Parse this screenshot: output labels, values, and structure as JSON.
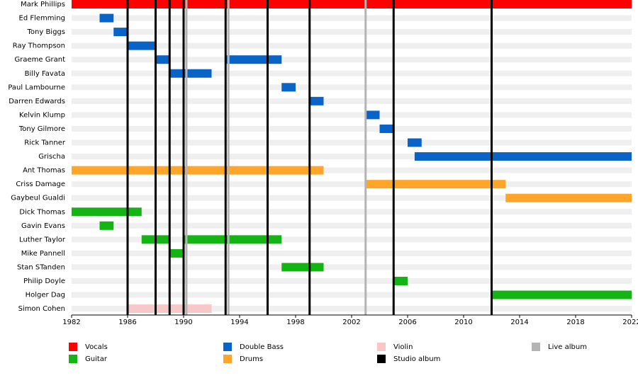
{
  "chart_data": {
    "type": "timeline",
    "xlim": [
      1982,
      2022
    ],
    "xticks": [
      1982,
      1986,
      1990,
      1994,
      1998,
      2002,
      2006,
      2010,
      2014,
      2018,
      2022
    ],
    "roles": [
      {
        "name": "Vocals",
        "color": "#ff0000"
      },
      {
        "name": "Guitar",
        "color": "#14b414"
      },
      {
        "name": "Double Bass",
        "color": "#0a64c8"
      },
      {
        "name": "Drums",
        "color": "#ffa62a"
      },
      {
        "name": "Violin",
        "color": "#f8c8c8"
      }
    ],
    "events": [
      {
        "name": "Studio album",
        "color": "#000000",
        "x": [
          1986,
          1988,
          1989,
          1990,
          1993,
          1996,
          1999,
          2005,
          2012
        ]
      },
      {
        "name": "Live album",
        "color": "#b4b4b4",
        "x": [
          1990.2,
          1993.2,
          2003
        ]
      }
    ],
    "members": [
      {
        "name": "Mark Phillips",
        "periods": [
          {
            "role": "Vocals",
            "start": 1982,
            "end": 2022
          }
        ]
      },
      {
        "name": "Ed Flemming",
        "periods": [
          {
            "role": "Double Bass",
            "start": 1984,
            "end": 1985
          }
        ]
      },
      {
        "name": "Tony Biggs",
        "periods": [
          {
            "role": "Double Bass",
            "start": 1985,
            "end": 1986
          }
        ]
      },
      {
        "name": "Ray Thompson",
        "periods": [
          {
            "role": "Double Bass",
            "start": 1986,
            "end": 1988
          }
        ]
      },
      {
        "name": "Graeme Grant",
        "periods": [
          {
            "role": "Double Bass",
            "start": 1988,
            "end": 1989
          },
          {
            "role": "Double Bass",
            "start": 1993,
            "end": 1997
          }
        ]
      },
      {
        "name": "Billy Favata",
        "periods": [
          {
            "role": "Double Bass",
            "start": 1989,
            "end": 1992
          }
        ]
      },
      {
        "name": "Paul Lambourne",
        "periods": [
          {
            "role": "Double Bass",
            "start": 1997,
            "end": 1998
          }
        ]
      },
      {
        "name": "Darren Edwards",
        "periods": [
          {
            "role": "Double Bass",
            "start": 1999,
            "end": 2000
          }
        ]
      },
      {
        "name": "Kelvin Klump",
        "periods": [
          {
            "role": "Double Bass",
            "start": 2003,
            "end": 2004
          }
        ]
      },
      {
        "name": "Tony Gilmore",
        "periods": [
          {
            "role": "Double Bass",
            "start": 2004,
            "end": 2005
          }
        ]
      },
      {
        "name": "Rick Tanner",
        "periods": [
          {
            "role": "Double Bass",
            "start": 2006,
            "end": 2007
          }
        ]
      },
      {
        "name": "Grischa",
        "periods": [
          {
            "role": "Double Bass",
            "start": 2006.5,
            "end": 2022
          }
        ]
      },
      {
        "name": "Ant Thomas",
        "periods": [
          {
            "role": "Drums",
            "start": 1982,
            "end": 2000
          }
        ]
      },
      {
        "name": "Criss Damage",
        "periods": [
          {
            "role": "Drums",
            "start": 2003,
            "end": 2013
          }
        ]
      },
      {
        "name": "Gaybeul Gualdi",
        "periods": [
          {
            "role": "Drums",
            "start": 2013,
            "end": 2022
          }
        ]
      },
      {
        "name": "Dick Thomas",
        "periods": [
          {
            "role": "Guitar",
            "start": 1982,
            "end": 1987
          }
        ]
      },
      {
        "name": "Gavin Evans",
        "periods": [
          {
            "role": "Guitar",
            "start": 1984,
            "end": 1985
          }
        ]
      },
      {
        "name": "Luther Taylor",
        "periods": [
          {
            "role": "Guitar",
            "start": 1987,
            "end": 1989
          },
          {
            "role": "Guitar",
            "start": 1990,
            "end": 1997
          }
        ]
      },
      {
        "name": "Mike Pannell",
        "periods": [
          {
            "role": "Guitar",
            "start": 1989,
            "end": 1990
          }
        ]
      },
      {
        "name": "Stan STanden",
        "periods": [
          {
            "role": "Guitar",
            "start": 1997,
            "end": 2000
          }
        ]
      },
      {
        "name": "Philip Doyle",
        "periods": [
          {
            "role": "Guitar",
            "start": 2005,
            "end": 2006
          }
        ]
      },
      {
        "name": "Holger Dag",
        "periods": [
          {
            "role": "Guitar",
            "start": 2012,
            "end": 2022
          }
        ]
      },
      {
        "name": "Simon Cohen",
        "periods": [
          {
            "role": "Violin",
            "start": 1986,
            "end": 1992
          }
        ]
      }
    ]
  }
}
